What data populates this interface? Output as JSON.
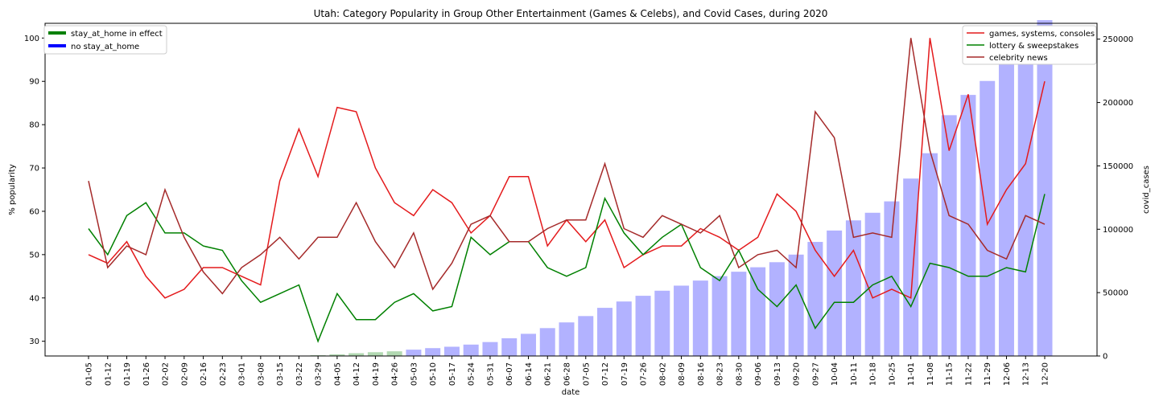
{
  "chart_data": {
    "type": "line",
    "title": "Utah: Category Popularity in Group Other Entertainment (Games & Celebs), and Covid Cases, during 2020",
    "xlabel": "date",
    "ylabel": "% popularity",
    "y2label": "covid_cases",
    "ylim": [
      26.6,
      103.4
    ],
    "y2lim": [
      0,
      262500
    ],
    "yticks": [
      30,
      40,
      50,
      60,
      70,
      80,
      90,
      100
    ],
    "y2ticks": [
      0,
      50000,
      100000,
      150000,
      200000,
      250000
    ],
    "categories": [
      "01-05",
      "01-12",
      "01-19",
      "01-26",
      "02-02",
      "02-09",
      "02-16",
      "02-23",
      "03-01",
      "03-08",
      "03-15",
      "03-22",
      "03-29",
      "04-05",
      "04-12",
      "04-19",
      "04-26",
      "05-03",
      "05-10",
      "05-17",
      "05-24",
      "05-31",
      "06-07",
      "06-14",
      "06-21",
      "06-28",
      "07-05",
      "07-12",
      "07-19",
      "07-26",
      "08-02",
      "08-09",
      "08-16",
      "08-23",
      "08-30",
      "09-06",
      "09-13",
      "09-20",
      "09-27",
      "10-04",
      "10-11",
      "10-18",
      "10-25",
      "11-01",
      "11-08",
      "11-15",
      "11-22",
      "11-29",
      "12-06",
      "12-13",
      "12-20"
    ],
    "series": [
      {
        "name": "games, systems, consoles",
        "color": "#e41a1c",
        "values": [
          50,
          48,
          53,
          45,
          40,
          42,
          47,
          47,
          45,
          43,
          67,
          79,
          68,
          84,
          83,
          70,
          62,
          59,
          65,
          62,
          55,
          59,
          68,
          68,
          52,
          58,
          53,
          58,
          47,
          50,
          52,
          52,
          56,
          54,
          51,
          54,
          64,
          60,
          51,
          45,
          51,
          40,
          42,
          40,
          100,
          74,
          87,
          57,
          65,
          71,
          90
        ]
      },
      {
        "name": "lottery & sweepstakes",
        "color": "#008000",
        "values": [
          56,
          50,
          59,
          62,
          55,
          55,
          52,
          51,
          44,
          39,
          41,
          43,
          30,
          41,
          35,
          35,
          39,
          41,
          37,
          38,
          54,
          50,
          53,
          53,
          47,
          45,
          47,
          63,
          55,
          50,
          54,
          57,
          47,
          44,
          51,
          42,
          38,
          43,
          33,
          39,
          39,
          43,
          45,
          38,
          48,
          47,
          45,
          45,
          47,
          46,
          64
        ]
      },
      {
        "name": "celebrity news",
        "color": "#a52a2a",
        "values": [
          67,
          47,
          52,
          50,
          65,
          54,
          46,
          41,
          47,
          50,
          54,
          49,
          54,
          54,
          62,
          53,
          47,
          55,
          42,
          48,
          57,
          59,
          53,
          53,
          56,
          58,
          58,
          71,
          56,
          54,
          59,
          57,
          55,
          59,
          47,
          50,
          51,
          47,
          83,
          77,
          54,
          55,
          54,
          100,
          74,
          59,
          57,
          51,
          49,
          59,
          57
        ]
      }
    ],
    "bars": {
      "name": "covid_cases",
      "stay_color": "#008000",
      "no_stay_color": "#0000ff",
      "stay_at_home": [
        false,
        false,
        false,
        false,
        false,
        false,
        false,
        false,
        false,
        false,
        false,
        false,
        true,
        true,
        true,
        true,
        true,
        false,
        false,
        false,
        false,
        false,
        false,
        false,
        false,
        false,
        false,
        false,
        false,
        false,
        false,
        false,
        false,
        false,
        false,
        false,
        false,
        false,
        false,
        false,
        false,
        false,
        false,
        false,
        false,
        false,
        false,
        false,
        false,
        false,
        false
      ],
      "values": [
        0,
        0,
        0,
        0,
        0,
        0,
        0,
        0,
        0,
        0,
        50,
        200,
        600,
        1300,
        2200,
        3000,
        3700,
        5000,
        6200,
        7300,
        9000,
        11000,
        14000,
        17500,
        22000,
        26500,
        31500,
        38000,
        43000,
        47500,
        51500,
        55500,
        59500,
        63000,
        66500,
        70000,
        74000,
        80000,
        90000,
        99000,
        107000,
        113000,
        122000,
        140000,
        160000,
        190000,
        206000,
        217000,
        240000,
        255000,
        265000
      ]
    },
    "legend_left": [
      {
        "label": "stay_at_home in effect",
        "color": "#008000"
      },
      {
        "label": "no stay_at_home",
        "color": "#0000ff"
      }
    ],
    "legend_right_placement": "top-right",
    "legend_left_placement": "top-left",
    "grid": false
  }
}
